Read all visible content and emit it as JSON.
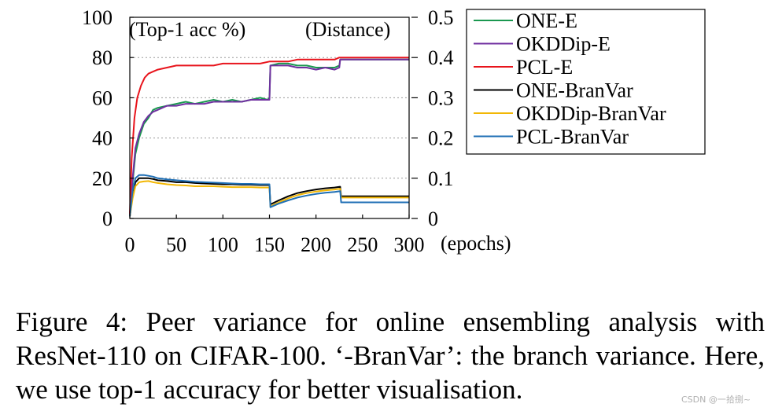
{
  "chart_data": {
    "type": "line",
    "left_axis_label": "(Top-1 acc %)",
    "right_axis_label": "(Distance)",
    "x_unit_label": "(epochs)",
    "xlim": [
      0,
      300
    ],
    "ylim_left": [
      0,
      100
    ],
    "ylim_right": [
      0,
      0.5
    ],
    "x_ticks": [
      0,
      50,
      100,
      150,
      200,
      250,
      300
    ],
    "y_ticks_left": [
      0,
      20,
      40,
      60,
      80,
      100
    ],
    "y_ticks_right": [
      "0",
      "0.1",
      "0.2",
      "0.3",
      "0.4",
      "0.5"
    ],
    "y_ticks_right_values": [
      0,
      0.1,
      0.2,
      0.3,
      0.4,
      0.5
    ],
    "grid": "horizontal dotted",
    "legend_position": "top-right outside",
    "series": [
      {
        "name": "ONE-E",
        "axis": "left",
        "color": "#1a9850",
        "x": [
          0,
          3,
          6,
          10,
          15,
          20,
          25,
          30,
          40,
          50,
          60,
          70,
          80,
          90,
          100,
          110,
          120,
          130,
          140,
          148,
          150,
          151,
          160,
          170,
          180,
          190,
          200,
          210,
          220,
          225,
          226,
          230,
          240,
          250,
          260,
          270,
          280,
          290,
          300
        ],
        "y": [
          2,
          18,
          32,
          40,
          47,
          50,
          54,
          55,
          56,
          57,
          58,
          57,
          58,
          59,
          58,
          59,
          58,
          59,
          60,
          59,
          60,
          76,
          77,
          77,
          76,
          76,
          75,
          75,
          75,
          76,
          79,
          79,
          79,
          79,
          79,
          79,
          79,
          79,
          79
        ]
      },
      {
        "name": "OKDDip-E",
        "axis": "left",
        "color": "#7030a0",
        "x": [
          0,
          3,
          6,
          10,
          15,
          20,
          25,
          30,
          40,
          50,
          60,
          70,
          80,
          90,
          100,
          110,
          120,
          130,
          140,
          148,
          150,
          151,
          160,
          170,
          180,
          190,
          200,
          210,
          220,
          225,
          226,
          230,
          240,
          250,
          260,
          270,
          280,
          290,
          300
        ],
        "y": [
          2,
          20,
          35,
          42,
          48,
          51,
          53,
          54,
          56,
          56,
          57,
          57,
          57,
          58,
          58,
          58,
          58,
          59,
          59,
          59,
          59,
          76,
          76,
          76,
          75,
          75,
          74,
          75,
          74,
          75,
          79,
          79,
          79,
          79,
          79,
          79,
          79,
          79,
          79
        ]
      },
      {
        "name": "PCL-E",
        "axis": "left",
        "color": "#e8141c",
        "x": [
          0,
          2,
          5,
          8,
          12,
          16,
          20,
          25,
          30,
          40,
          50,
          60,
          70,
          80,
          90,
          100,
          110,
          120,
          130,
          140,
          150,
          160,
          170,
          180,
          200,
          220,
          225,
          226,
          230,
          240,
          260,
          280,
          300
        ],
        "y": [
          2,
          30,
          50,
          60,
          66,
          70,
          72,
          73,
          74,
          75,
          76,
          76,
          76,
          76,
          76,
          77,
          77,
          77,
          77,
          77,
          78,
          78,
          78,
          79,
          79,
          79,
          80,
          80,
          80,
          80,
          80,
          80,
          80
        ]
      },
      {
        "name": "ONE-BranVar",
        "axis": "right",
        "color": "#000000",
        "x": [
          0,
          3,
          6,
          10,
          15,
          20,
          25,
          30,
          40,
          50,
          60,
          70,
          80,
          90,
          100,
          110,
          120,
          130,
          140,
          150,
          151,
          160,
          170,
          180,
          190,
          200,
          210,
          220,
          226,
          227,
          240,
          260,
          280,
          300
        ],
        "y": [
          0.005,
          0.06,
          0.09,
          0.1,
          0.1,
          0.1,
          0.098,
          0.095,
          0.093,
          0.09,
          0.09,
          0.088,
          0.087,
          0.086,
          0.085,
          0.085,
          0.084,
          0.084,
          0.083,
          0.083,
          0.035,
          0.045,
          0.055,
          0.063,
          0.068,
          0.072,
          0.075,
          0.077,
          0.079,
          0.055,
          0.055,
          0.055,
          0.055,
          0.055
        ]
      },
      {
        "name": "OKDDip-BranVar",
        "axis": "right",
        "color": "#f2b705",
        "x": [
          0,
          3,
          6,
          10,
          15,
          20,
          25,
          30,
          40,
          50,
          60,
          70,
          80,
          90,
          100,
          110,
          120,
          130,
          140,
          150,
          151,
          160,
          170,
          180,
          190,
          200,
          210,
          220,
          226,
          227,
          240,
          260,
          280,
          300
        ],
        "y": [
          0.005,
          0.05,
          0.08,
          0.09,
          0.092,
          0.093,
          0.09,
          0.088,
          0.085,
          0.083,
          0.082,
          0.08,
          0.08,
          0.08,
          0.079,
          0.078,
          0.078,
          0.078,
          0.077,
          0.077,
          0.03,
          0.04,
          0.05,
          0.058,
          0.063,
          0.067,
          0.07,
          0.072,
          0.074,
          0.052,
          0.052,
          0.052,
          0.052,
          0.052
        ]
      },
      {
        "name": "PCL-BranVar",
        "axis": "right",
        "color": "#1f6fb5",
        "x": [
          0,
          3,
          6,
          10,
          15,
          20,
          25,
          30,
          40,
          50,
          60,
          70,
          80,
          90,
          100,
          110,
          120,
          130,
          140,
          150,
          151,
          160,
          170,
          180,
          190,
          200,
          210,
          220,
          226,
          227,
          240,
          260,
          280,
          300
        ],
        "y": [
          0.005,
          0.07,
          0.1,
          0.108,
          0.108,
          0.106,
          0.104,
          0.1,
          0.097,
          0.095,
          0.093,
          0.091,
          0.09,
          0.089,
          0.088,
          0.087,
          0.086,
          0.086,
          0.085,
          0.085,
          0.028,
          0.037,
          0.045,
          0.052,
          0.057,
          0.061,
          0.064,
          0.066,
          0.068,
          0.04,
          0.04,
          0.04,
          0.04,
          0.04
        ]
      }
    ]
  },
  "caption": "Figure 4: Peer variance for online ensembling analysis with ResNet-110 on CIFAR-100. ‘-BranVar’: the branch variance. Here, we use top-1 accuracy for better visualisation.",
  "watermark": "CSDN @一拾捌~"
}
